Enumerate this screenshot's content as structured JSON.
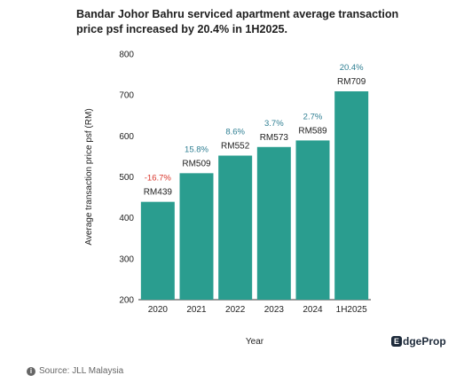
{
  "chart_data": {
    "type": "bar",
    "title": "Bandar Johor Bahru serviced apartment average transaction price psf increased by 20.4% in 1H2025.",
    "xlabel": "Year",
    "ylabel": "Average transaction price psf (RM)",
    "ylim": [
      200,
      800
    ],
    "yticks": [
      "200",
      "300",
      "400",
      "500",
      "600",
      "700",
      "800"
    ],
    "categories": [
      "2020",
      "2021",
      "2022",
      "2023",
      "2024",
      "1H2025"
    ],
    "values": [
      439,
      509,
      552,
      573,
      589,
      709
    ],
    "value_labels": [
      "RM439",
      "RM509",
      "RM552",
      "RM573",
      "RM589",
      "RM709"
    ],
    "change_labels": [
      "-16.7%",
      "15.8%",
      "8.6%",
      "3.7%",
      "2.7%",
      "20.4%"
    ],
    "grid": false,
    "colors": {
      "bar": "#2a9d8f",
      "positive_change": "#2f7f93",
      "negative_change": "#d9352b",
      "text": "#222222",
      "axis": "#333333"
    }
  },
  "logo": {
    "mark": "E",
    "text": "dgeProp"
  },
  "source": {
    "icon": "info-icon",
    "text": "Source: JLL Malaysia"
  }
}
